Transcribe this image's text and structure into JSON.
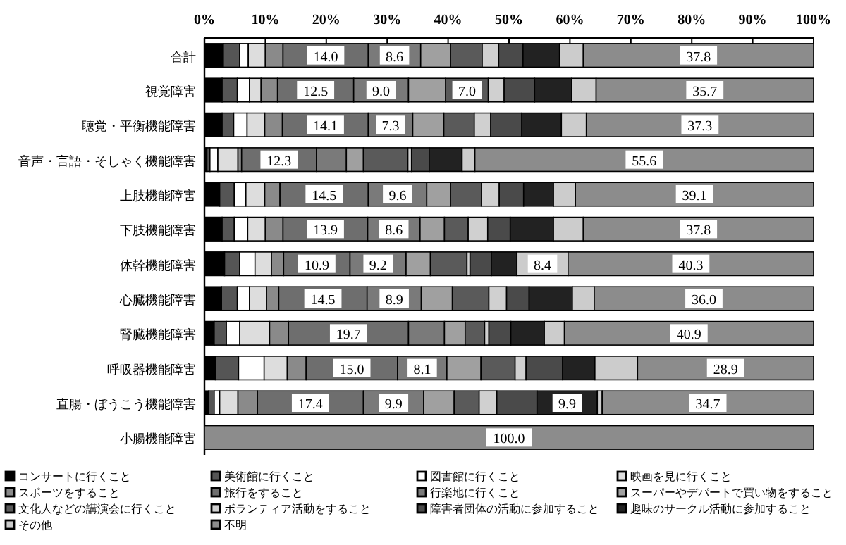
{
  "chart_data": {
    "type": "bar",
    "orientation": "horizontal",
    "stacked": true,
    "legend": "bottom",
    "xlim": [
      0,
      100
    ],
    "xticks": [
      {
        "value": 0,
        "label": "0%"
      },
      {
        "value": 10,
        "label": "10%"
      },
      {
        "value": 20,
        "label": "20%"
      },
      {
        "value": 30,
        "label": "30%"
      },
      {
        "value": 40,
        "label": "40%"
      },
      {
        "value": 50,
        "label": "50%"
      },
      {
        "value": 60,
        "label": "60%"
      },
      {
        "value": 70,
        "label": "70%"
      },
      {
        "value": 80,
        "label": "80%"
      },
      {
        "value": 90,
        "label": "90%"
      },
      {
        "value": 100,
        "label": "100%"
      }
    ],
    "categories": [
      "合計",
      "視覚障害",
      "聴覚・平衡機能障害",
      "音声・言語・そしゃく機能障害",
      "上肢機能障害",
      "下肢機能障害",
      "体幹機能障害",
      "心臓機能障害",
      "腎臓機能障害",
      "呼吸器機能障害",
      "直腸・ぼうこう機能障害",
      "小腸機能障害"
    ],
    "series": [
      {
        "name": "コンサートに行くこと",
        "color": "#000000",
        "values": [
          3.1,
          2.9,
          2.9,
          0.4,
          2.5,
          2.9,
          3.3,
          2.8,
          1.6,
          1.8,
          0.7,
          0
        ]
      },
      {
        "name": "美術館に行くこと",
        "color": "#555555",
        "values": [
          2.7,
          2.5,
          1.9,
          0.5,
          2.4,
          2.0,
          2.5,
          2.6,
          2.0,
          3.8,
          0.9,
          0
        ]
      },
      {
        "name": "図書館に行くこと",
        "color": "#ffffff",
        "values": [
          1.4,
          2.0,
          2.2,
          1.3,
          1.9,
          2.2,
          2.5,
          2.0,
          2.2,
          4.2,
          0.9,
          0
        ]
      },
      {
        "name": "映画を見に行くこと",
        "color": "#dddddd",
        "values": [
          2.8,
          1.9,
          2.9,
          3.3,
          3.1,
          2.9,
          2.7,
          2.8,
          4.9,
          3.8,
          3.0,
          0
        ]
      },
      {
        "name": "スポーツをすること",
        "color": "#8a8a8a",
        "values": [
          2.9,
          2.7,
          2.9,
          0.6,
          2.5,
          2.9,
          2.0,
          2.0,
          3.1,
          3.1,
          3.2,
          0
        ]
      },
      {
        "name": "旅行をすること",
        "color": "#6e6e6e",
        "values": [
          14.0,
          12.5,
          14.1,
          12.3,
          14.5,
          13.9,
          10.9,
          14.5,
          19.7,
          15.0,
          17.4,
          0
        ],
        "value_labels": [
          "14.0",
          "12.5",
          "14.1",
          "12.3",
          "14.5",
          "13.9",
          "10.9",
          "14.5",
          "19.7",
          "15.0",
          "17.4",
          null
        ]
      },
      {
        "name": "行楽地に行くこと",
        "color": "#7a7a7a",
        "values": [
          8.6,
          9.0,
          7.3,
          4.9,
          9.6,
          8.6,
          9.2,
          8.9,
          5.9,
          8.1,
          9.9,
          0
        ],
        "value_labels": [
          "8.6",
          "9.0",
          "7.3",
          null,
          "9.6",
          "8.6",
          "9.2",
          "8.9",
          null,
          "8.1",
          "9.9",
          null
        ]
      },
      {
        "name": "スーパーやデパートで買い物をすること",
        "color": "#a0a0a0",
        "values": [
          4.9,
          6.1,
          5.1,
          2.8,
          3.9,
          4.0,
          4.0,
          5.1,
          3.4,
          5.6,
          5.0,
          0
        ]
      },
      {
        "name": "文化人などの講演会に行くこと",
        "color": "#5a5a5a",
        "values": [
          5.2,
          7.0,
          5.0,
          7.3,
          5.1,
          3.9,
          6.0,
          6.0,
          3.2,
          5.6,
          4.1,
          0
        ],
        "value_labels": [
          null,
          "7.0",
          null,
          null,
          null,
          null,
          null,
          null,
          null,
          null,
          null,
          null
        ]
      },
      {
        "name": "ボランティア活動をすること",
        "color": "#d0d0d0",
        "values": [
          2.7,
          2.6,
          2.7,
          0.6,
          2.9,
          3.2,
          0.5,
          2.9,
          0.7,
          1.8,
          2.9,
          0
        ]
      },
      {
        "name": "障害者団体の活動に参加すること",
        "color": "#4a4a4a",
        "values": [
          4.0,
          5.0,
          5.1,
          2.9,
          4.0,
          3.7,
          3.5,
          3.7,
          3.6,
          6.0,
          6.6,
          0
        ]
      },
      {
        "name": "趣味のサークル活動に参加すること",
        "color": "#222222",
        "values": [
          6.0,
          6.1,
          6.5,
          5.4,
          4.9,
          7.1,
          4.2,
          7.1,
          5.5,
          5.3,
          9.9,
          0
        ],
        "value_labels": [
          null,
          null,
          null,
          null,
          null,
          null,
          null,
          null,
          null,
          null,
          "9.9",
          null
        ]
      },
      {
        "name": "その他",
        "color": "#cccccc",
        "values": [
          3.9,
          4.0,
          4.1,
          2.1,
          3.6,
          4.9,
          8.4,
          3.6,
          3.3,
          7.0,
          0.8,
          0
        ],
        "value_labels": [
          null,
          null,
          null,
          null,
          null,
          null,
          "8.4",
          null,
          null,
          null,
          null,
          null
        ]
      },
      {
        "name": "不明",
        "color": "#8c8c8c",
        "values": [
          37.8,
          35.7,
          37.3,
          55.6,
          39.1,
          37.8,
          40.3,
          36.0,
          40.9,
          28.9,
          34.7,
          100.0
        ],
        "value_labels": [
          "37.8",
          "35.7",
          "37.3",
          "55.6",
          "39.1",
          "37.8",
          "40.3",
          "36.0",
          "40.9",
          "28.9",
          "34.7",
          "100.0"
        ]
      }
    ]
  }
}
